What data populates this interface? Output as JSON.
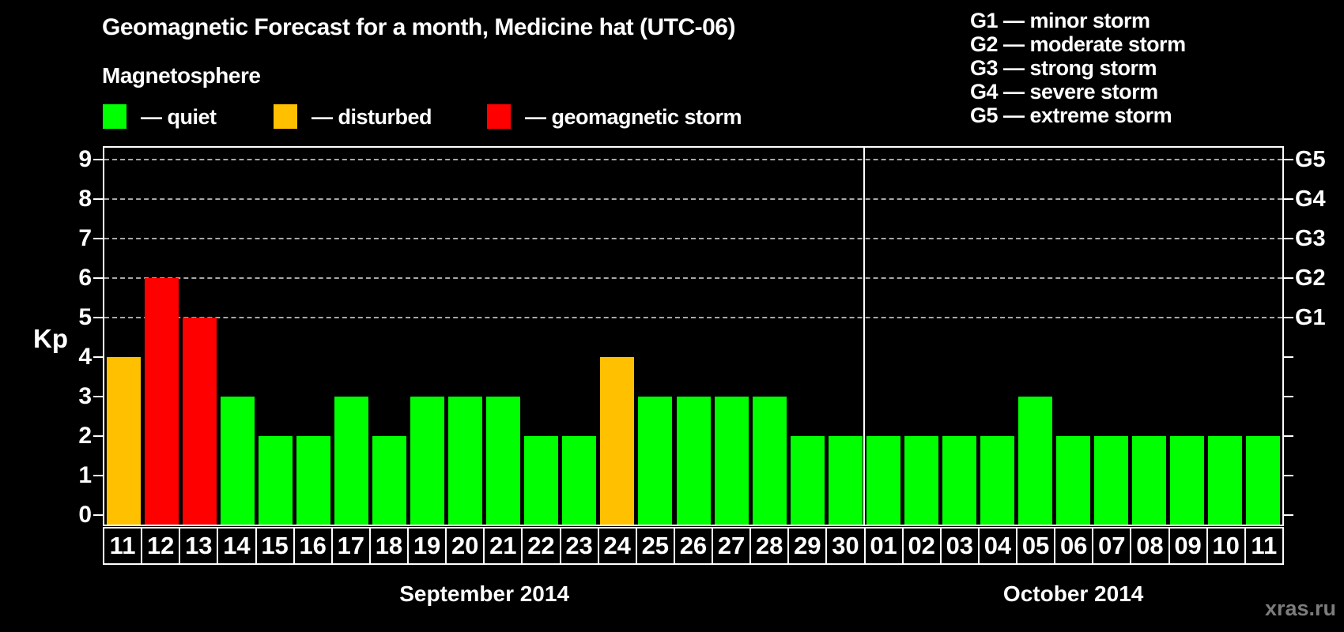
{
  "header": {
    "title": "Geomagnetic Forecast for a month, Medicine hat (UTC-06)",
    "subtitle": "Magnetosphere"
  },
  "legend": {
    "items": [
      {
        "state": "quiet",
        "label": "— quiet"
      },
      {
        "state": "disturbed",
        "label": "— disturbed"
      },
      {
        "state": "storm",
        "label": "— geomagnetic storm"
      }
    ]
  },
  "g_legend": {
    "items": [
      {
        "label": "G1 — minor storm"
      },
      {
        "label": "G2 — moderate storm"
      },
      {
        "label": "G3 — strong storm"
      },
      {
        "label": "G4 — severe storm"
      },
      {
        "label": "G5 — extreme storm"
      }
    ]
  },
  "colors": {
    "quiet": "#00ff00",
    "disturbed": "#ffc000",
    "storm": "#ff0000",
    "axis": "#ffffff",
    "grid": "#a8a8a8",
    "watermark": "#7c7c7c"
  },
  "axis": {
    "ylabel": "Kp",
    "kp_ticks": [
      0,
      1,
      2,
      3,
      4,
      5,
      6,
      7,
      8,
      9
    ]
  },
  "chart_data": {
    "type": "bar",
    "title": "Geomagnetic Forecast for a month, Medicine hat (UTC-06)",
    "xlabel": "",
    "ylabel": "Kp",
    "ylim": [
      -0.3,
      9.35
    ],
    "grid": "dashed horizontal lines at Kp 5,6,7,8,9 only",
    "gridlines_at": [
      5,
      6,
      7,
      8,
      9
    ],
    "g_scale": [
      {
        "kp": 5,
        "label": "G1"
      },
      {
        "kp": 6,
        "label": "G2"
      },
      {
        "kp": 7,
        "label": "G3"
      },
      {
        "kp": 8,
        "label": "G4"
      },
      {
        "kp": 9,
        "label": "G5"
      }
    ],
    "months": [
      "September 2014",
      "October 2014"
    ],
    "points": [
      {
        "m": 0,
        "day": "11",
        "kp": 4,
        "state": "disturbed"
      },
      {
        "m": 0,
        "day": "12",
        "kp": 6,
        "state": "storm"
      },
      {
        "m": 0,
        "day": "13",
        "kp": 5,
        "state": "storm"
      },
      {
        "m": 0,
        "day": "14",
        "kp": 3,
        "state": "quiet"
      },
      {
        "m": 0,
        "day": "15",
        "kp": 2,
        "state": "quiet"
      },
      {
        "m": 0,
        "day": "16",
        "kp": 2,
        "state": "quiet"
      },
      {
        "m": 0,
        "day": "17",
        "kp": 3,
        "state": "quiet"
      },
      {
        "m": 0,
        "day": "18",
        "kp": 2,
        "state": "quiet"
      },
      {
        "m": 0,
        "day": "19",
        "kp": 3,
        "state": "quiet"
      },
      {
        "m": 0,
        "day": "20",
        "kp": 3,
        "state": "quiet"
      },
      {
        "m": 0,
        "day": "21",
        "kp": 3,
        "state": "quiet"
      },
      {
        "m": 0,
        "day": "22",
        "kp": 2,
        "state": "quiet"
      },
      {
        "m": 0,
        "day": "23",
        "kp": 2,
        "state": "quiet"
      },
      {
        "m": 0,
        "day": "24",
        "kp": 4,
        "state": "disturbed"
      },
      {
        "m": 0,
        "day": "25",
        "kp": 3,
        "state": "quiet"
      },
      {
        "m": 0,
        "day": "26",
        "kp": 3,
        "state": "quiet"
      },
      {
        "m": 0,
        "day": "27",
        "kp": 3,
        "state": "quiet"
      },
      {
        "m": 0,
        "day": "28",
        "kp": 3,
        "state": "quiet"
      },
      {
        "m": 0,
        "day": "29",
        "kp": 2,
        "state": "quiet"
      },
      {
        "m": 0,
        "day": "30",
        "kp": 2,
        "state": "quiet"
      },
      {
        "m": 1,
        "day": "01",
        "kp": 2,
        "state": "quiet"
      },
      {
        "m": 1,
        "day": "02",
        "kp": 2,
        "state": "quiet"
      },
      {
        "m": 1,
        "day": "03",
        "kp": 2,
        "state": "quiet"
      },
      {
        "m": 1,
        "day": "04",
        "kp": 2,
        "state": "quiet"
      },
      {
        "m": 1,
        "day": "05",
        "kp": 3,
        "state": "quiet"
      },
      {
        "m": 1,
        "day": "06",
        "kp": 2,
        "state": "quiet"
      },
      {
        "m": 1,
        "day": "07",
        "kp": 2,
        "state": "quiet"
      },
      {
        "m": 1,
        "day": "08",
        "kp": 2,
        "state": "quiet"
      },
      {
        "m": 1,
        "day": "09",
        "kp": 2,
        "state": "quiet"
      },
      {
        "m": 1,
        "day": "10",
        "kp": 2,
        "state": "quiet"
      },
      {
        "m": 1,
        "day": "11",
        "kp": 2,
        "state": "quiet"
      }
    ]
  },
  "watermark": "xras.ru"
}
